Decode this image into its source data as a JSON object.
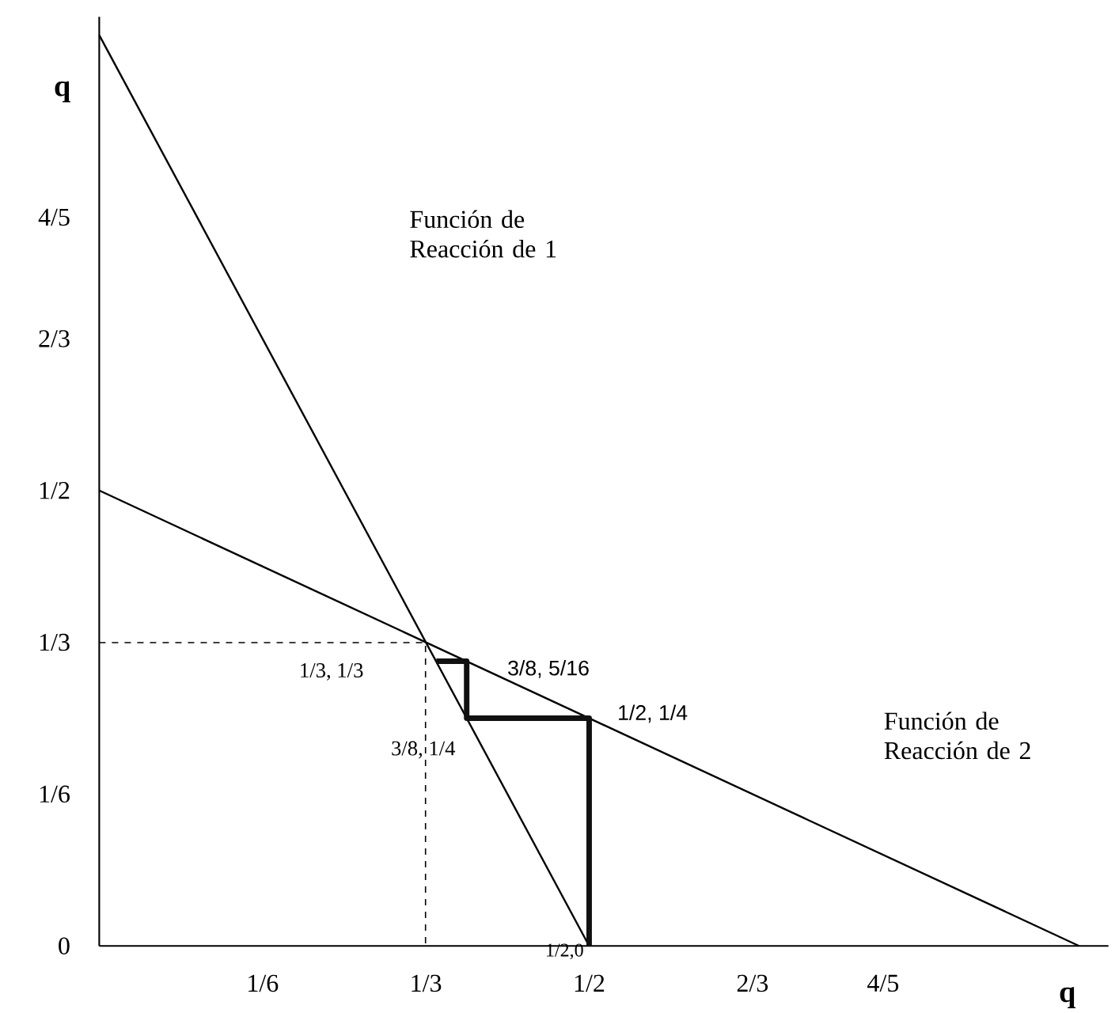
{
  "chart_data": {
    "type": "line",
    "xlabel": "q",
    "ylabel": "q",
    "xlim": [
      0,
      1.03
    ],
    "ylim": [
      0,
      1.02
    ],
    "xticks": [
      {
        "value": 0.1667,
        "label": "1/6"
      },
      {
        "value": 0.3333,
        "label": "1/3"
      },
      {
        "value": 0.5,
        "label": "1/2"
      },
      {
        "value": 0.6667,
        "label": "2/3"
      },
      {
        "value": 0.8,
        "label": "4/5"
      }
    ],
    "yticks": [
      0,
      {
        "value": 0.1667,
        "label": "1/6"
      },
      {
        "value": 0.3333,
        "label": "1/3"
      },
      {
        "value": 0.5,
        "label": "1/2"
      },
      {
        "value": 0.6667,
        "label": "2/3"
      },
      {
        "value": 0.8,
        "label": "4/5"
      }
    ],
    "series": [
      {
        "color": "#000000",
        "x": [
          0,
          0.5
        ],
        "values": [
          1,
          0
        ]
      },
      {
        "color": "#000000",
        "x": [
          0,
          1
        ],
        "values": [
          0.5,
          0
        ]
      },
      {
        "color": "#111111",
        "x": [
          0.5,
          0.5,
          0.375,
          0.375,
          0.344
        ],
        "values": [
          0,
          0.25,
          0.25,
          0.3125,
          0.3125
        ]
      },
      {
        "color": "#000000",
        "x": [
          0,
          0.333,
          0.333
        ],
        "values": [
          0.333,
          0.333,
          0
        ],
        "line_style": "dashed"
      }
    ],
    "annotations": [
      "Función de Reacción de 1",
      "Función de Reacción de 2",
      "1/3, 1/3",
      "3/8, 5/16",
      "1/2, 1/4",
      "3/8, 1/4",
      "1/2,0"
    ],
    "grid": false,
    "marker": "none",
    "line_style": "solid"
  }
}
